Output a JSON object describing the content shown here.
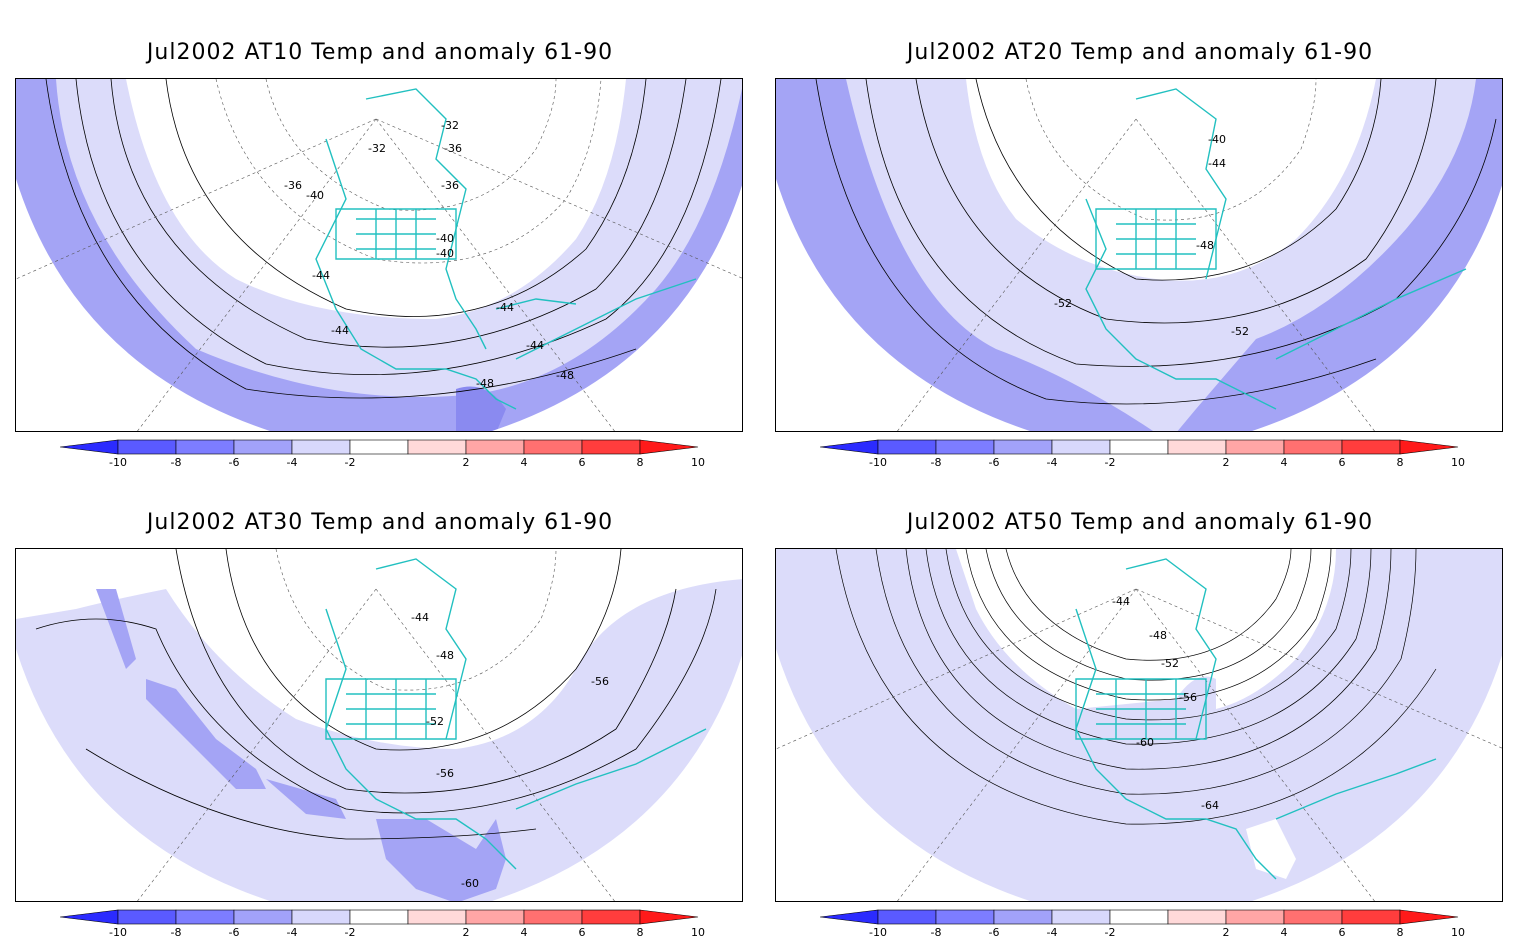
{
  "panels": [
    {
      "title": "Jul2002 AT10 Temp and anomaly 61-90",
      "contour_labels": [
        "-32",
        "-32",
        "-36",
        "-36",
        "-36",
        "-40",
        "-40",
        "-40",
        "-44",
        "-44",
        "-44",
        "-44",
        "-48",
        "-48"
      ]
    },
    {
      "title": "Jul2002 AT20 Temp and anomaly 61-90",
      "contour_labels": [
        "-40",
        "-44",
        "-48",
        "-52",
        "-52"
      ]
    },
    {
      "title": "Jul2002 AT30 Temp and anomaly 61-90",
      "contour_labels": [
        "-44",
        "-48",
        "-52",
        "-56",
        "-56",
        "-60"
      ]
    },
    {
      "title": "Jul2002 AT50 Temp and anomaly 61-90",
      "contour_labels": [
        "-44",
        "-48",
        "-52",
        "-56",
        "-60",
        "-64"
      ]
    }
  ],
  "colorbar": {
    "ticks": [
      "-10",
      "-8",
      "-6",
      "-4",
      "-2",
      "2",
      "4",
      "6",
      "8",
      "10"
    ],
    "colors": [
      "#2b2bff",
      "#5a5aff",
      "#7d7dff",
      "#a2a2fa",
      "#d8d8fc",
      "#ffffff",
      "#ffd9d9",
      "#ffa6a6",
      "#ff7070",
      "#ff3d3d",
      "#ff1a1a"
    ]
  },
  "colors": {
    "coast": "#22c0c0",
    "anomaly_-2": "#dcdcfa",
    "anomaly_-4": "#a4a4f5",
    "anomaly_-6": "#8080ee"
  }
}
